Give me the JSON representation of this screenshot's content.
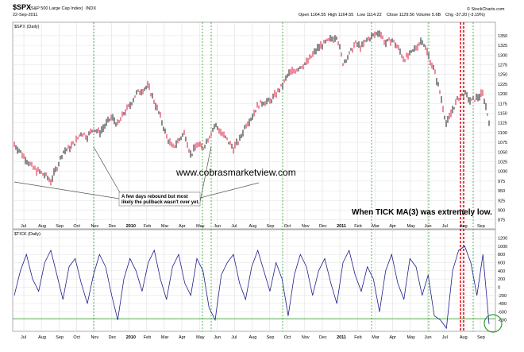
{
  "header": {
    "symbol": "$SPX",
    "name": "(S&P 500 Large Cap Index)",
    "exchange": "INDX",
    "date": "22-Sep-2011",
    "watermark_brand": "© StockCharts.com",
    "stats": [
      {
        "label": "Open",
        "value": "1164.55"
      },
      {
        "label": "High",
        "value": "1164.55"
      },
      {
        "label": "Low",
        "value": "1114.22"
      },
      {
        "label": "Close",
        "value": "1129.56"
      },
      {
        "label": "Volume",
        "value": "5.6B"
      },
      {
        "label": "Chg",
        "value": "-37.20 (-3.19%)"
      }
    ],
    "price_panel_label": "$SPX (Daily)",
    "tick_panel_label": "$TICK (Daily)"
  },
  "annotations": {
    "watermark": "www.cobrasmarketview.com",
    "callout": [
      "A few days rebound but most",
      "likely the pullback wasn't over yet."
    ],
    "blue_note": "When TICK MA(3) was extremely low."
  },
  "colors": {
    "up_bar": "#000000",
    "down_bar": "#d9002a",
    "tick_line": "#1e1e8c",
    "green_marker": "#2e9e2e",
    "red_marker": "#e8000a",
    "blue_note": "#1010cc",
    "callout_text": "#008000"
  },
  "chart_data": [
    {
      "type": "line",
      "title": "$SPX (Daily)",
      "series": [
        {
          "values": [
            1070,
            1050,
            1030,
            1010,
            1000,
            990,
            975,
            1010,
            1050,
            1060,
            1075,
            1100,
            1090,
            1110,
            1100,
            1120,
            1140,
            1120,
            1150,
            1170,
            1200,
            1210,
            1220,
            1180,
            1140,
            1090,
            1060,
            1080,
            1100,
            1040,
            1070,
            1060,
            1090,
            1120,
            1100,
            1080,
            1060,
            1080,
            1120,
            1140,
            1170,
            1180,
            1180,
            1200,
            1220,
            1250,
            1260,
            1270,
            1280,
            1300,
            1320,
            1330,
            1340,
            1350,
            1280,
            1300,
            1330,
            1320,
            1340,
            1350,
            1360,
            1330,
            1340,
            1320,
            1290,
            1300,
            1320,
            1340,
            1300,
            1260,
            1200,
            1120,
            1160,
            1190,
            1200,
            1180,
            1190,
            1200,
            1130
          ]
        }
      ],
      "x_labels": [
        "Jul",
        "Aug",
        "Sep",
        "Oct",
        "Nov",
        "Dec",
        "2010",
        "Feb",
        "Mar",
        "Apr",
        "May",
        "Jun",
        "Jul",
        "Aug",
        "Sep",
        "Oct",
        "Nov",
        "Dec",
        "2011",
        "Feb",
        "Mar",
        "Apr",
        "May",
        "Jun",
        "Jul",
        "Aug",
        "Sep"
      ],
      "y_ticks": [
        875,
        900,
        925,
        950,
        975,
        1000,
        1025,
        1050,
        1075,
        1100,
        1125,
        1150,
        1175,
        1200,
        1225,
        1250,
        1275,
        1300,
        1325,
        1350
      ],
      "ylim": [
        860,
        1360
      ],
      "grid": true
    },
    {
      "type": "line",
      "title": "$TICK (Daily)",
      "series": [
        {
          "values": [
            -200,
            400,
            800,
            200,
            -100,
            600,
            900,
            300,
            -300,
            500,
            700,
            100,
            -400,
            300,
            800,
            500,
            -200,
            -800,
            200,
            700,
            400,
            -100,
            600,
            900,
            200,
            -300,
            500,
            800,
            100,
            -200,
            700,
            400,
            -500,
            -800,
            300,
            600,
            800,
            100,
            -300,
            500,
            900,
            400,
            -100,
            600,
            200,
            -700,
            300,
            800,
            500,
            -200,
            400,
            700,
            100,
            -400,
            600,
            900,
            300,
            -100,
            500,
            200,
            -600,
            400,
            800,
            100,
            -300,
            700,
            500,
            -200,
            300,
            -700,
            -800,
            -1000,
            400,
            900,
            1000,
            600,
            -200,
            800,
            -900
          ]
        }
      ],
      "y_ticks": [
        -800,
        -600,
        -400,
        -200,
        0,
        200,
        400,
        600,
        800,
        1000,
        1200
      ],
      "ylim": [
        -1000,
        1250
      ],
      "grid": true
    }
  ]
}
